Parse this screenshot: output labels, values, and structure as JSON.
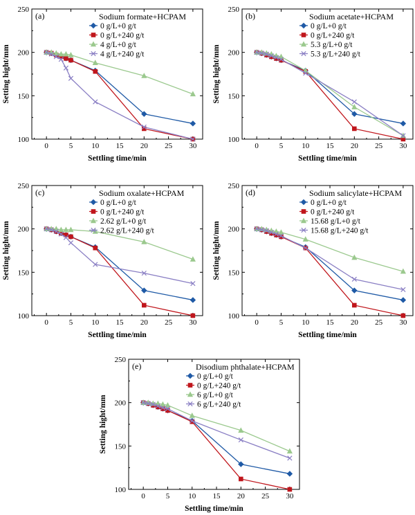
{
  "colors": {
    "blue": "#1f5aa6",
    "red": "#c0161c",
    "green": "#9bc98e",
    "purple": "#8a7fc4"
  },
  "chart_data": [
    {
      "type": "line",
      "panel": "(a)",
      "legend_title": "Sodium formate+HCPAM",
      "xlabel": "Settling time/min",
      "ylabel": "Setting hight/mm",
      "xlim": [
        -3,
        32
      ],
      "ylim": [
        100,
        250
      ],
      "xticks": [
        "0",
        "5",
        "10",
        "15",
        "20",
        "25",
        "30"
      ],
      "yticks": [
        "100",
        "150",
        "200",
        "250"
      ],
      "legend_placement": "top-right",
      "series": [
        {
          "name": "0 g/L+0 g/t",
          "color": "blue",
          "marker": "diamond",
          "x": [
            0,
            1,
            2,
            3,
            4,
            5,
            10,
            20,
            30
          ],
          "y": [
            200,
            199,
            197,
            195,
            193,
            191,
            179,
            129,
            118
          ]
        },
        {
          "name": "0 g/L+240 g/t",
          "color": "red",
          "marker": "square",
          "x": [
            0,
            1,
            2,
            3,
            4,
            5,
            10,
            20,
            30
          ],
          "y": [
            200,
            199,
            197,
            195,
            193,
            191,
            178,
            112,
            100
          ]
        },
        {
          "name": "4 g/L+0 g/t",
          "color": "green",
          "marker": "triangle",
          "x": [
            0,
            1,
            2,
            3,
            4,
            5,
            10,
            20,
            30
          ],
          "y": [
            200,
            200,
            199,
            198,
            198,
            197,
            188,
            173,
            152
          ]
        },
        {
          "name": "4 g/L+240 g/t",
          "color": "purple",
          "marker": "cross",
          "x": [
            0,
            1,
            2,
            3,
            4,
            5,
            10,
            20,
            30
          ],
          "y": [
            200,
            198,
            195,
            192,
            182,
            170,
            143,
            114,
            100
          ]
        }
      ]
    },
    {
      "type": "line",
      "panel": "(b)",
      "legend_title": "Sodium acetate+HCPAM",
      "xlabel": "Settling time/min",
      "ylabel": "Setting hight/mm",
      "xlim": [
        -3,
        32
      ],
      "ylim": [
        100,
        250
      ],
      "xticks": [
        "0",
        "5",
        "10",
        "15",
        "20",
        "25",
        "30"
      ],
      "yticks": [
        "100",
        "150",
        "200",
        "250"
      ],
      "legend_placement": "top-right",
      "series": [
        {
          "name": "0 g/L+0 g/t",
          "color": "blue",
          "marker": "diamond",
          "x": [
            0,
            1,
            2,
            3,
            4,
            5,
            10,
            20,
            30
          ],
          "y": [
            200,
            199,
            197,
            195,
            193,
            191,
            179,
            129,
            118
          ]
        },
        {
          "name": "0 g/L+240 g/t",
          "color": "red",
          "marker": "square",
          "x": [
            0,
            1,
            2,
            3,
            4,
            5,
            10,
            20,
            30
          ],
          "y": [
            200,
            199,
            197,
            195,
            193,
            191,
            178,
            112,
            100
          ]
        },
        {
          "name": "5.3 g/L+0 g/t",
          "color": "green",
          "marker": "triangle",
          "x": [
            0,
            1,
            2,
            3,
            4,
            5,
            10,
            20,
            30
          ],
          "y": [
            200,
            200,
            199,
            198,
            196,
            195,
            179,
            137,
            104
          ]
        },
        {
          "name": "5.3 g/L+240 g/t",
          "color": "purple",
          "marker": "cross",
          "x": [
            0,
            1,
            2,
            3,
            4,
            5,
            10,
            20,
            30
          ],
          "y": [
            200,
            199,
            198,
            196,
            194,
            192,
            176,
            143,
            104
          ]
        }
      ]
    },
    {
      "type": "line",
      "panel": "(c)",
      "legend_title": "Sodium oxalate+HCPAM",
      "xlabel": "Settling time/min",
      "ylabel": "Setting hight/mm",
      "xlim": [
        -3,
        32
      ],
      "ylim": [
        100,
        250
      ],
      "xticks": [
        "0",
        "5",
        "10",
        "15",
        "20",
        "25",
        "30"
      ],
      "yticks": [
        "100",
        "150",
        "200",
        "250"
      ],
      "legend_placement": "top-right",
      "series": [
        {
          "name": "0 g/L+0 g/t",
          "color": "blue",
          "marker": "diamond",
          "x": [
            0,
            1,
            2,
            3,
            4,
            5,
            10,
            20,
            30
          ],
          "y": [
            200,
            199,
            197,
            195,
            193,
            191,
            179,
            129,
            118
          ]
        },
        {
          "name": "0 g/L+240 g/t",
          "color": "red",
          "marker": "square",
          "x": [
            0,
            1,
            2,
            3,
            4,
            5,
            10,
            20,
            30
          ],
          "y": [
            200,
            199,
            197,
            195,
            193,
            191,
            178,
            112,
            100
          ]
        },
        {
          "name": "2.62 g/L+0 g/t",
          "color": "green",
          "marker": "triangle",
          "x": [
            0,
            1,
            2,
            3,
            4,
            5,
            10,
            20,
            30
          ],
          "y": [
            200,
            200,
            200,
            199,
            199,
            199,
            197,
            185,
            165
          ]
        },
        {
          "name": "2.62 g/L+240 g/t",
          "color": "purple",
          "marker": "cross",
          "x": [
            0,
            1,
            2,
            3,
            4,
            5,
            10,
            20,
            30
          ],
          "y": [
            200,
            199,
            197,
            194,
            190,
            184,
            159,
            149,
            137
          ]
        }
      ]
    },
    {
      "type": "line",
      "panel": "(d)",
      "legend_title": "Sodium salicylate+HCPAM",
      "xlabel": "Settling time/min",
      "ylabel": "Setting hight/mm",
      "xlim": [
        -3,
        32
      ],
      "ylim": [
        100,
        250
      ],
      "xticks": [
        "0",
        "5",
        "10",
        "15",
        "20",
        "25",
        "30"
      ],
      "yticks": [
        "100",
        "150",
        "200",
        "250"
      ],
      "legend_placement": "top-right",
      "series": [
        {
          "name": "0 g/L+0 g/t",
          "color": "blue",
          "marker": "diamond",
          "x": [
            0,
            1,
            2,
            3,
            4,
            5,
            10,
            20,
            30
          ],
          "y": [
            200,
            199,
            197,
            195,
            193,
            191,
            179,
            129,
            118
          ]
        },
        {
          "name": "0 g/L+240 g/t",
          "color": "red",
          "marker": "square",
          "x": [
            0,
            1,
            2,
            3,
            4,
            5,
            10,
            20,
            30
          ],
          "y": [
            200,
            199,
            197,
            195,
            193,
            191,
            178,
            112,
            100
          ]
        },
        {
          "name": "15.68 g/L+0 g/t",
          "color": "green",
          "marker": "triangle",
          "x": [
            0,
            1,
            2,
            3,
            4,
            5,
            10,
            20,
            30
          ],
          "y": [
            200,
            200,
            199,
            198,
            197,
            196,
            188,
            167,
            151
          ]
        },
        {
          "name": "15.68 g/L+240 g/t",
          "color": "purple",
          "marker": "cross",
          "x": [
            0,
            1,
            2,
            3,
            4,
            5,
            10,
            20,
            30
          ],
          "y": [
            200,
            199,
            198,
            196,
            194,
            192,
            178,
            142,
            130
          ]
        }
      ]
    },
    {
      "type": "line",
      "panel": "(e)",
      "legend_title": "Disodium phthalate+HCPAM",
      "xlabel": "Settling time/min",
      "ylabel": "Setting hight/mm",
      "xlim": [
        -3,
        32
      ],
      "ylim": [
        100,
        250
      ],
      "xticks": [
        "0",
        "5",
        "10",
        "15",
        "20",
        "25",
        "30"
      ],
      "yticks": [
        "100",
        "150",
        "200",
        "250"
      ],
      "legend_placement": "top-right",
      "series": [
        {
          "name": "0 g/L+0 g/t",
          "color": "blue",
          "marker": "diamond",
          "x": [
            0,
            1,
            2,
            3,
            4,
            5,
            10,
            20,
            30
          ],
          "y": [
            200,
            199,
            197,
            195,
            193,
            191,
            179,
            129,
            118
          ]
        },
        {
          "name": "0 g/L+240 g/t",
          "color": "red",
          "marker": "square",
          "x": [
            0,
            1,
            2,
            3,
            4,
            5,
            10,
            20,
            30
          ],
          "y": [
            200,
            199,
            197,
            195,
            193,
            191,
            178,
            112,
            100
          ]
        },
        {
          "name": "6 g/L+0 g/t",
          "color": "green",
          "marker": "triangle",
          "x": [
            0,
            1,
            2,
            3,
            4,
            5,
            10,
            20,
            30
          ],
          "y": [
            200,
            200,
            199,
            199,
            198,
            197,
            185,
            168,
            144
          ]
        },
        {
          "name": "6 g/L+240 g/t",
          "color": "purple",
          "marker": "cross",
          "x": [
            0,
            1,
            2,
            3,
            4,
            5,
            10,
            20,
            30
          ],
          "y": [
            200,
            199,
            198,
            196,
            194,
            193,
            179,
            157,
            136
          ]
        }
      ]
    }
  ]
}
